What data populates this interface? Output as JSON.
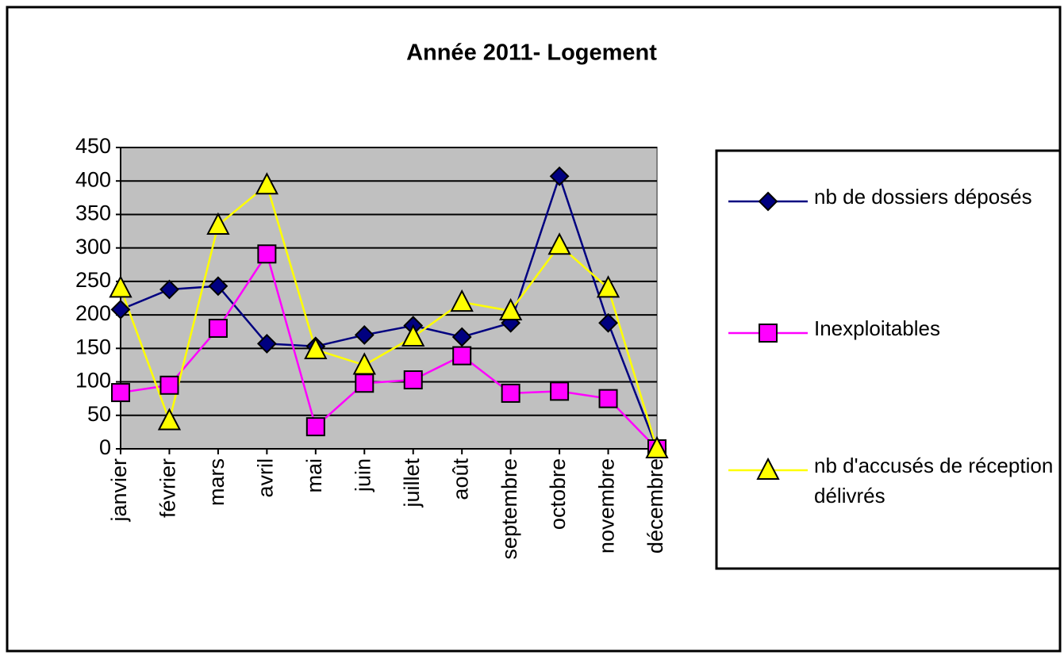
{
  "chart_data": {
    "type": "line",
    "title": "Année 2011- Logement",
    "categories": [
      "janvier",
      "février",
      "mars",
      "avril",
      "mai",
      "juin",
      "juillet",
      "août",
      "septembre",
      "octobre",
      "novembre",
      "décembre"
    ],
    "series": [
      {
        "name": "nb de dossiers déposés",
        "color": "#000080",
        "marker": "diamond",
        "marker_color": "#000080",
        "values": [
          208,
          238,
          243,
          157,
          153,
          170,
          184,
          167,
          188,
          407,
          188,
          0
        ]
      },
      {
        "name": "Inexploitables",
        "color": "#ff00ff",
        "marker": "square",
        "marker_color": "#ff00ff",
        "values": [
          84,
          95,
          180,
          291,
          33,
          98,
          103,
          139,
          83,
          86,
          75,
          0
        ]
      },
      {
        "name": "nb d'accusés de réception délivrés",
        "color": "#ffff00",
        "marker": "triangle",
        "marker_color": "#ffff00",
        "values": [
          240,
          42,
          334,
          394,
          148,
          125,
          167,
          219,
          206,
          304,
          240,
          0
        ]
      }
    ],
    "ylim": [
      0,
      450
    ],
    "yticks": [
      0,
      50,
      100,
      150,
      200,
      250,
      300,
      350,
      400,
      450
    ],
    "grid": true,
    "legend": "right"
  }
}
